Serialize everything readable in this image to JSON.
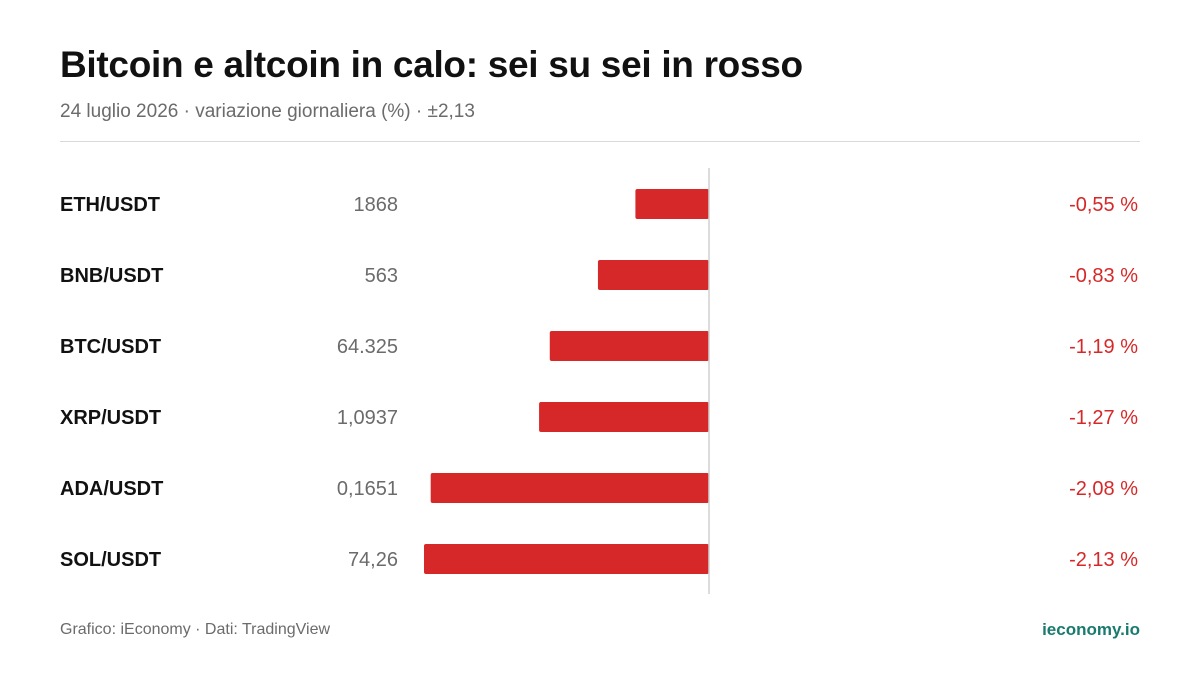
{
  "header": {
    "title": "Bitcoin e altcoin in calo: sei su sei in rosso",
    "subtitle": "24 luglio 2026 · variazione giornaliera (%) · ±2,13"
  },
  "footer": {
    "credit": "Grafico: iEconomy · Dati: TradingView",
    "brand": "ieconomy.io"
  },
  "colors": {
    "negative": "#d62828",
    "axis": "#d0d0d0",
    "brand": "#1a7a6e"
  },
  "chart_data": {
    "type": "bar",
    "orientation": "horizontal",
    "title": "Bitcoin e altcoin in calo: sei su sei in rosso",
    "categories": [
      "ETH/USDT",
      "BNB/USDT",
      "BTC/USDT",
      "XRP/USDT",
      "ADA/USDT",
      "SOL/USDT"
    ],
    "prices": [
      "1868",
      "563",
      "64.325",
      "1,0937",
      "0,1651",
      "74,26"
    ],
    "values": [
      -0.55,
      -0.83,
      -1.19,
      -1.27,
      -2.08,
      -2.13
    ],
    "value_labels": [
      "-0,55 %",
      "-0,83 %",
      "-1,19 %",
      "-1,27 %",
      "-2,08 %",
      "-2,13 %"
    ],
    "xlim": [
      -2.13,
      2.13
    ],
    "grid": false,
    "legend": "none"
  }
}
